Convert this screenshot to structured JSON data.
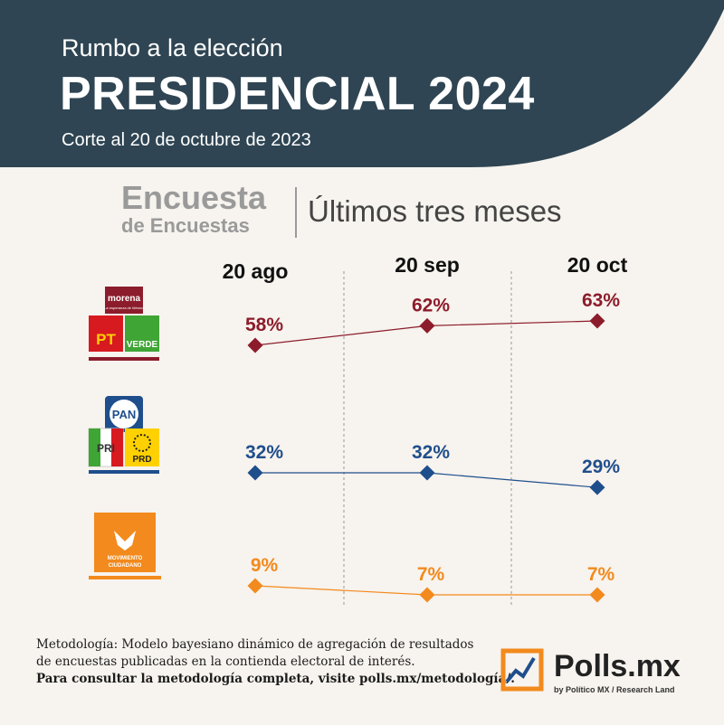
{
  "header": {
    "subtitle": "Rumbo a la elección",
    "title": "PRESIDENCIAL 2024",
    "cutoff": "Corte al 20 de octubre de 2023"
  },
  "brand": {
    "line1": "Encuesta",
    "line2": "de Encuestas",
    "subtitle": "Últimos tres meses"
  },
  "colors": {
    "header_bg": "#2f4553",
    "morena": "#8c1c2b",
    "pan": "#1f4e8c",
    "mc": "#f28a1d",
    "background": "#f7f3ee"
  },
  "chart_data": {
    "type": "line",
    "categories": [
      "20 ago",
      "20 sep",
      "20 oct"
    ],
    "series": [
      {
        "name": "Morena-PT-Verde",
        "labels": [
          "58%",
          "62%",
          "63%"
        ],
        "values": [
          58,
          62,
          63
        ],
        "color": "#8c1c2b"
      },
      {
        "name": "PAN-PRI-PRD",
        "labels": [
          "32%",
          "32%",
          "29%"
        ],
        "values": [
          32,
          32,
          29
        ],
        "color": "#1f4e8c"
      },
      {
        "name": "Movimiento Ciudadano",
        "labels": [
          "9%",
          "7%",
          "7%"
        ],
        "values": [
          9,
          7,
          7
        ],
        "color": "#f28a1d"
      }
    ]
  },
  "logos": {
    "morena": "morena",
    "morena_tag": "La esperanza de México",
    "pt": "PT",
    "verde": "VERDE",
    "pan": "PAN",
    "pri": "PRI",
    "prd": "PRD",
    "mc_line1": "MOVIMIENTO",
    "mc_line2": "CIUDADANO"
  },
  "footer": {
    "line1": "Metodología: Modelo bayesiano dinámico de agregación de resultados",
    "line2": "de encuestas publicadas en la contienda electoral de interés.",
    "line3": "Para consultar la metodología completa, visite polls.mx/metodología/."
  },
  "polls": {
    "name": "Polls.mx",
    "by": "by Político MX / Research Land"
  }
}
